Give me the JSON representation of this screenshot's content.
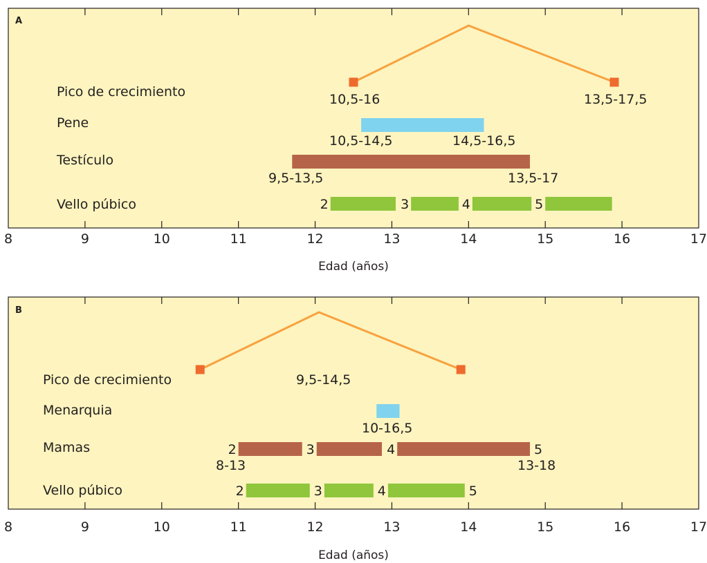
{
  "colors": {
    "panel_bg": "#fdf4bf",
    "peak_line": "#f7a23f",
    "peak_marker": "#ef6a2d",
    "blue_bar": "#7fd3ef",
    "brown_bar": "#b5644a",
    "green_bar": "#8fc63c",
    "axis": "#231f20"
  },
  "chart_data": [
    {
      "type": "bar",
      "panel_label": "A",
      "xlabel": "Edad (años)",
      "xlim": [
        8,
        17
      ],
      "ticks": [
        "8",
        "9",
        "10",
        "11",
        "12",
        "13",
        "14",
        "15",
        "16",
        "17"
      ],
      "rows": [
        {
          "name": "Pico de crecimiento",
          "peak": {
            "start": 12.5,
            "apex": 14.0,
            "end": 15.9
          },
          "labels": [
            "10,5-16",
            "13,5-17,5"
          ]
        },
        {
          "name": "Pene",
          "segments": [
            {
              "start": 12.6,
              "end": 14.2
            }
          ],
          "labels": [
            "10,5-14,5",
            "14,5-16,5"
          ]
        },
        {
          "name": "Testículo",
          "segments": [
            {
              "start": 11.7,
              "end": 14.8
            }
          ],
          "labels": [
            "9,5-13,5",
            "13,5-17"
          ]
        },
        {
          "name": "Vello púbico",
          "segments": [
            {
              "stage": "2",
              "start": 12.2,
              "end": 13.05
            },
            {
              "stage": "3",
              "start": 13.25,
              "end": 13.87
            },
            {
              "stage": "4",
              "start": 14.05,
              "end": 14.82
            },
            {
              "stage": "5",
              "start": 15.0,
              "end": 15.87
            }
          ]
        }
      ]
    },
    {
      "type": "bar",
      "panel_label": "B",
      "xlabel": "Edad (años)",
      "xlim": [
        8,
        17
      ],
      "ticks": [
        "8",
        "9",
        "10",
        "11",
        "12",
        "13",
        "14",
        "15",
        "16",
        "17"
      ],
      "rows": [
        {
          "name": "Pico de crecimiento",
          "peak": {
            "start": 10.5,
            "apex": 12.05,
            "end": 13.9
          },
          "labels": [
            "9,5-14,5"
          ]
        },
        {
          "name": "Menarquia",
          "segments": [
            {
              "start": 12.8,
              "end": 13.1
            }
          ],
          "labels": [
            "10-16,5"
          ]
        },
        {
          "name": "Mamas",
          "segments": [
            {
              "stage": "2",
              "start": 11.0,
              "end": 11.83
            },
            {
              "stage": "3",
              "start": 12.02,
              "end": 12.87
            },
            {
              "stage": "4",
              "start": 13.07,
              "end": 14.8,
              "end_stage": "5"
            }
          ],
          "labels": [
            "8-13",
            "13-18"
          ]
        },
        {
          "name": "Vello púbico",
          "segments": [
            {
              "stage": "2",
              "start": 11.1,
              "end": 11.93
            },
            {
              "stage": "3",
              "start": 12.12,
              "end": 12.76
            },
            {
              "stage": "4",
              "start": 12.95,
              "end": 13.95,
              "end_stage": "5"
            }
          ]
        }
      ]
    }
  ]
}
